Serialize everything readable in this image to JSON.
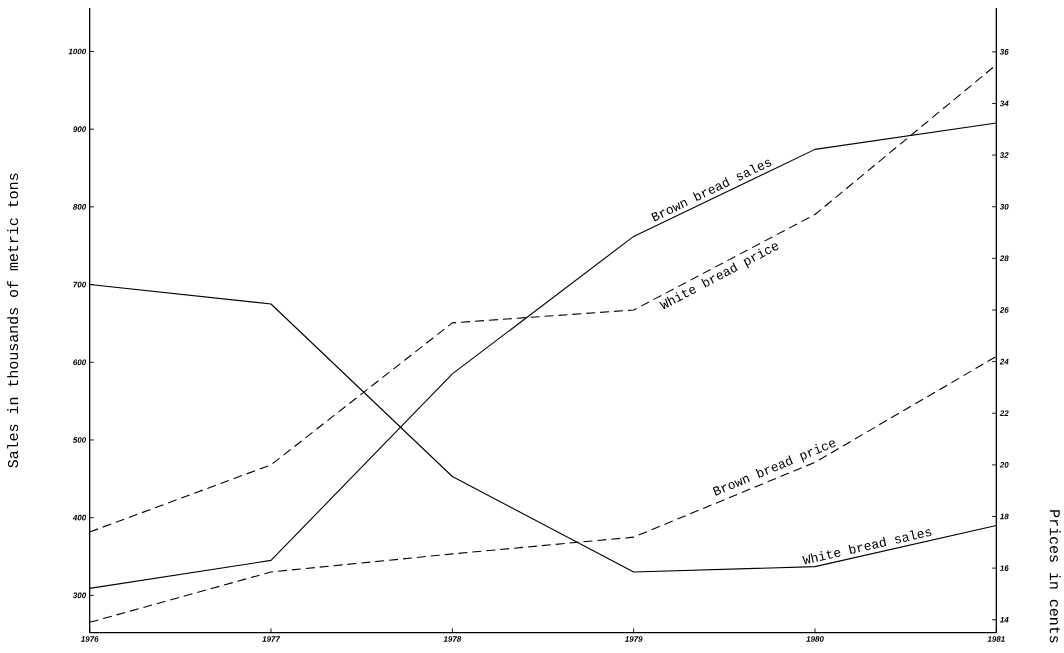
{
  "chart_data": {
    "type": "line",
    "categories": [
      "1976",
      "1977",
      "1978",
      "1979",
      "1980",
      "1981"
    ],
    "ylabel": "Sales in thousands of metric tons",
    "y2label": "Prices in cents",
    "ylim": [
      252,
      1056
    ],
    "yticks": [
      300,
      400,
      500,
      600,
      700,
      800,
      900,
      1000
    ],
    "y2lim": [
      13.5,
      37.7
    ],
    "y2ticks": [
      14,
      16,
      18,
      20,
      22,
      24,
      26,
      28,
      30,
      32,
      34,
      36
    ],
    "series": [
      {
        "name": "Brown bread sales",
        "color": "#000000",
        "line_style": "solid",
        "values": [
          309,
          345,
          585,
          762,
          874,
          908
        ]
      },
      {
        "name": "White bread sales",
        "color": "#000000",
        "line_style": "solid",
        "values": [
          700,
          675,
          453,
          330,
          337,
          390
        ]
      },
      {
        "name": "White bread price",
        "color": "#000000",
        "line_style": "dashed",
        "axis": "y2",
        "values": [
          17.4,
          20.0,
          25.5,
          26.0,
          29.7,
          35.5
        ]
      },
      {
        "name": "Brown bread price",
        "color": "#000000",
        "line_style": "dashed",
        "axis": "y2",
        "values": [
          13.9,
          15.85,
          16.55,
          17.2,
          20.1,
          24.2
        ]
      }
    ]
  }
}
